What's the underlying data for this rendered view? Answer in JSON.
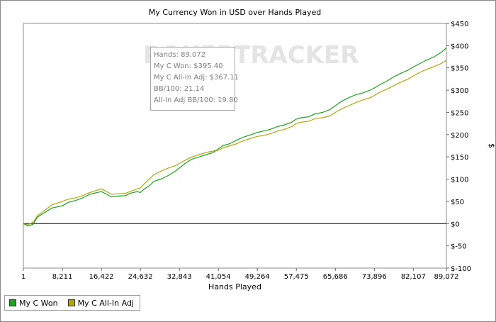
{
  "chart_data": {
    "type": "line",
    "title": "My Currency Won in USD over Hands Played",
    "xlabel": "Hands Played",
    "ylabel": "$",
    "xlim": [
      1,
      89072
    ],
    "ylim": [
      -100,
      450
    ],
    "x_ticks": [
      "1",
      "8,211",
      "16,422",
      "24,632",
      "32,843",
      "41,054",
      "49,264",
      "57,475",
      "65,686",
      "73,896",
      "82,107",
      "89,072"
    ],
    "x_tick_values": [
      1,
      8211,
      16422,
      24632,
      32843,
      41054,
      49264,
      57475,
      65686,
      73896,
      82107,
      89072
    ],
    "y_ticks": [
      "$-100",
      "$-50",
      "$0",
      "$50",
      "$100",
      "$150",
      "$200",
      "$250",
      "$300",
      "$350",
      "$400",
      "$450"
    ],
    "y_tick_values": [
      -100,
      -50,
      0,
      50,
      100,
      150,
      200,
      250,
      300,
      350,
      400,
      450
    ],
    "grid": false,
    "legend_position": "bottom-left",
    "series": [
      {
        "name": "My C Won",
        "color": "#1fa21f",
        "points": [
          [
            1,
            0
          ],
          [
            900,
            -5
          ],
          [
            2000,
            -2
          ],
          [
            3000,
            15
          ],
          [
            4500,
            25
          ],
          [
            6000,
            35
          ],
          [
            8211,
            40
          ],
          [
            9500,
            48
          ],
          [
            11000,
            52
          ],
          [
            12500,
            58
          ],
          [
            14000,
            66
          ],
          [
            16422,
            72
          ],
          [
            17500,
            66
          ],
          [
            18500,
            60
          ],
          [
            20000,
            62
          ],
          [
            21500,
            63
          ],
          [
            22500,
            68
          ],
          [
            24000,
            72
          ],
          [
            24632,
            70
          ],
          [
            25500,
            78
          ],
          [
            26500,
            85
          ],
          [
            27500,
            95
          ],
          [
            29000,
            100
          ],
          [
            30500,
            108
          ],
          [
            32000,
            118
          ],
          [
            32843,
            125
          ],
          [
            34000,
            135
          ],
          [
            35500,
            145
          ],
          [
            37000,
            150
          ],
          [
            38500,
            155
          ],
          [
            40000,
            160
          ],
          [
            41054,
            168
          ],
          [
            42000,
            175
          ],
          [
            43500,
            180
          ],
          [
            45000,
            188
          ],
          [
            46500,
            195
          ],
          [
            48000,
            200
          ],
          [
            49264,
            205
          ],
          [
            50500,
            208
          ],
          [
            52000,
            212
          ],
          [
            53500,
            218
          ],
          [
            55000,
            222
          ],
          [
            56500,
            228
          ],
          [
            57475,
            235
          ],
          [
            58500,
            238
          ],
          [
            60000,
            240
          ],
          [
            61500,
            247
          ],
          [
            63000,
            250
          ],
          [
            64500,
            256
          ],
          [
            65686,
            265
          ],
          [
            67000,
            275
          ],
          [
            68500,
            283
          ],
          [
            70000,
            290
          ],
          [
            71500,
            294
          ],
          [
            73000,
            300
          ],
          [
            73896,
            305
          ],
          [
            75000,
            312
          ],
          [
            76500,
            320
          ],
          [
            78000,
            330
          ],
          [
            79500,
            338
          ],
          [
            81000,
            345
          ],
          [
            82107,
            352
          ],
          [
            83500,
            360
          ],
          [
            85000,
            368
          ],
          [
            86500,
            375
          ],
          [
            88000,
            385
          ],
          [
            89072,
            395
          ]
        ]
      },
      {
        "name": "My C All-In Adj",
        "color": "#b2a50f",
        "points": [
          [
            1,
            0
          ],
          [
            900,
            -3
          ],
          [
            2000,
            3
          ],
          [
            3000,
            18
          ],
          [
            4500,
            30
          ],
          [
            6000,
            42
          ],
          [
            8211,
            50
          ],
          [
            9500,
            55
          ],
          [
            11000,
            58
          ],
          [
            12500,
            63
          ],
          [
            14000,
            70
          ],
          [
            16422,
            78
          ],
          [
            17500,
            72
          ],
          [
            18500,
            66
          ],
          [
            20000,
            67
          ],
          [
            21500,
            68
          ],
          [
            22500,
            72
          ],
          [
            24000,
            78
          ],
          [
            24632,
            80
          ],
          [
            25500,
            90
          ],
          [
            26500,
            100
          ],
          [
            27500,
            110
          ],
          [
            29000,
            118
          ],
          [
            30500,
            125
          ],
          [
            32000,
            130
          ],
          [
            32843,
            135
          ],
          [
            34000,
            142
          ],
          [
            35500,
            150
          ],
          [
            37000,
            155
          ],
          [
            38500,
            160
          ],
          [
            40000,
            163
          ],
          [
            41054,
            165
          ],
          [
            42000,
            170
          ],
          [
            43500,
            175
          ],
          [
            45000,
            180
          ],
          [
            46500,
            187
          ],
          [
            48000,
            192
          ],
          [
            49264,
            196
          ],
          [
            50500,
            198
          ],
          [
            52000,
            202
          ],
          [
            53500,
            208
          ],
          [
            55000,
            212
          ],
          [
            56500,
            218
          ],
          [
            57475,
            225
          ],
          [
            58500,
            228
          ],
          [
            60000,
            230
          ],
          [
            61500,
            236
          ],
          [
            63000,
            238
          ],
          [
            64500,
            242
          ],
          [
            65686,
            250
          ],
          [
            67000,
            258
          ],
          [
            68500,
            265
          ],
          [
            70000,
            272
          ],
          [
            71500,
            278
          ],
          [
            73000,
            283
          ],
          [
            73896,
            288
          ],
          [
            75000,
            295
          ],
          [
            76500,
            302
          ],
          [
            78000,
            310
          ],
          [
            79500,
            318
          ],
          [
            81000,
            325
          ],
          [
            82107,
            332
          ],
          [
            83500,
            340
          ],
          [
            85000,
            347
          ],
          [
            86500,
            353
          ],
          [
            88000,
            360
          ],
          [
            89072,
            367
          ]
        ]
      }
    ]
  },
  "tooltip": {
    "lines": [
      "Hands: 89,072",
      "My C Won: $395.40",
      "My C All-In Adj: $367.11",
      "BB/100: 21.14",
      "All-In Adj BB/100: 19.80"
    ]
  },
  "watermark": "POKERTRACKER",
  "legend": {
    "items": [
      {
        "label": "My C Won",
        "color": "#1fa21f"
      },
      {
        "label": "My C All-In Adj",
        "color": "#b2a50f"
      }
    ]
  }
}
